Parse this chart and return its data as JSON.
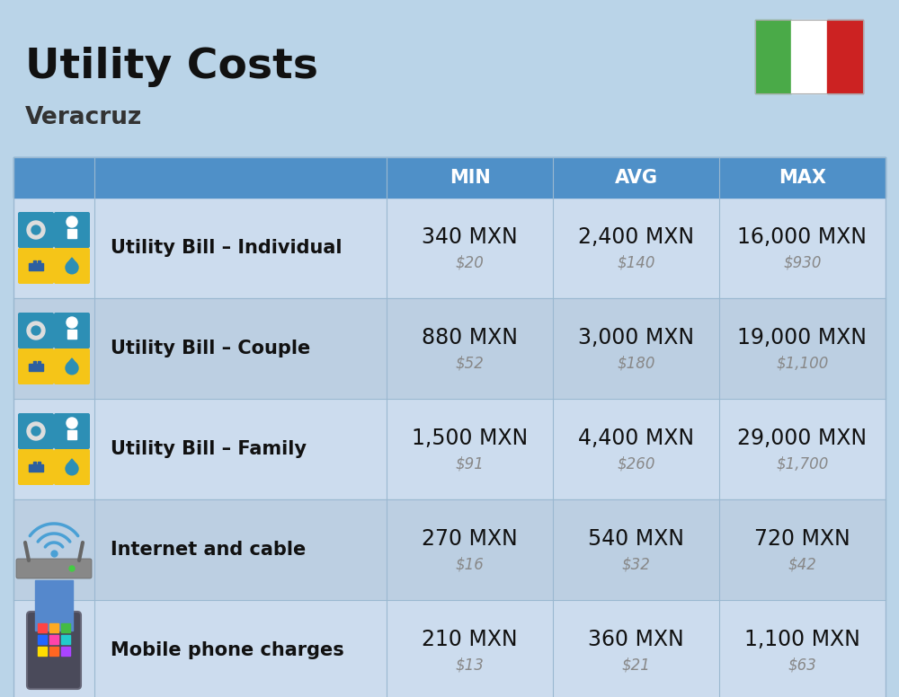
{
  "title": "Utility Costs",
  "subtitle": "Veracruz",
  "background_color": "#bad4e8",
  "header_bg_color": "#4f90c8",
  "header_text_color": "#ffffff",
  "row_bg_color_even": "#ccdcee",
  "row_bg_color_odd": "#bccfe2",
  "divider_color": "#9ab8d0",
  "col_headers": [
    "MIN",
    "AVG",
    "MAX"
  ],
  "rows": [
    {
      "label": "Utility Bill – Individual",
      "icon": "utility",
      "min_mxn": "340 MXN",
      "min_usd": "$20",
      "avg_mxn": "2,400 MXN",
      "avg_usd": "$140",
      "max_mxn": "16,000 MXN",
      "max_usd": "$930"
    },
    {
      "label": "Utility Bill – Couple",
      "icon": "utility",
      "min_mxn": "880 MXN",
      "min_usd": "$52",
      "avg_mxn": "3,000 MXN",
      "avg_usd": "$180",
      "max_mxn": "19,000 MXN",
      "max_usd": "$1,100"
    },
    {
      "label": "Utility Bill – Family",
      "icon": "utility",
      "min_mxn": "1,500 MXN",
      "min_usd": "$91",
      "avg_mxn": "4,400 MXN",
      "avg_usd": "$260",
      "max_mxn": "29,000 MXN",
      "max_usd": "$1,700"
    },
    {
      "label": "Internet and cable",
      "icon": "internet",
      "min_mxn": "270 MXN",
      "min_usd": "$16",
      "avg_mxn": "540 MXN",
      "avg_usd": "$32",
      "max_mxn": "720 MXN",
      "max_usd": "$42"
    },
    {
      "label": "Mobile phone charges",
      "icon": "mobile",
      "min_mxn": "210 MXN",
      "min_usd": "$13",
      "avg_mxn": "360 MXN",
      "avg_usd": "$21",
      "max_mxn": "1,100 MXN",
      "max_usd": "$63"
    }
  ],
  "title_fontsize": 34,
  "subtitle_fontsize": 19,
  "header_fontsize": 15,
  "label_fontsize": 15,
  "value_fontsize": 17,
  "usd_fontsize": 12,
  "usd_color": "#888888",
  "flag_green": "#4aaa48",
  "flag_red": "#cc2222"
}
